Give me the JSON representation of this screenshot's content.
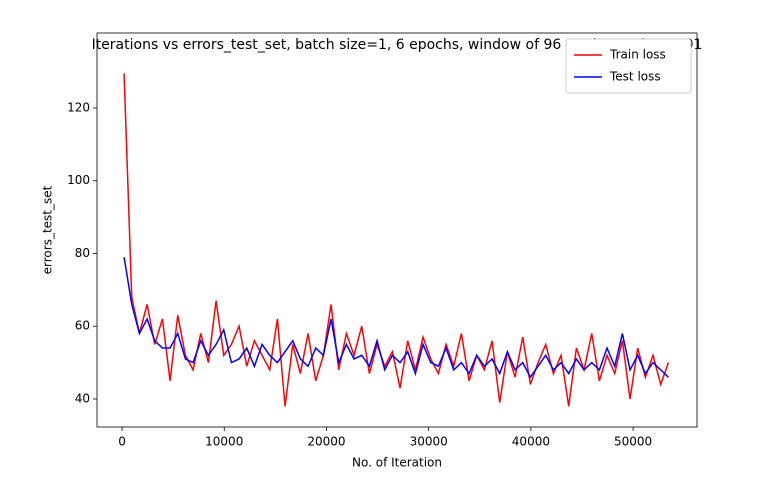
{
  "chart_data": {
    "type": "line",
    "title": "Iterations vs errors_test_set, batch size=1, 6 epochs, window of 96 1/4 hours, lr=0.001",
    "xlabel": "No. of Iteration",
    "ylabel": "errors_test_set",
    "x": [
      200,
      950,
      1700,
      2450,
      3200,
      3950,
      4700,
      5450,
      6200,
      6950,
      7700,
      8450,
      9200,
      9950,
      10700,
      11450,
      12200,
      12950,
      13700,
      14450,
      15200,
      15950,
      16700,
      17450,
      18200,
      18950,
      19700,
      20450,
      21200,
      21950,
      22700,
      23450,
      24200,
      24950,
      25700,
      26450,
      27200,
      27950,
      28700,
      29450,
      30200,
      30950,
      31700,
      32450,
      33200,
      33950,
      34700,
      35450,
      36200,
      36950,
      37700,
      38450,
      39200,
      39950,
      40700,
      41450,
      42200,
      42950,
      43700,
      44450,
      45200,
      45950,
      46700,
      47450,
      48200,
      48950,
      49700,
      50450,
      51200,
      51950,
      52700,
      53450
    ],
    "series": [
      {
        "name": "Train loss",
        "color": "#ff0000",
        "values": [
          129.5,
          68,
          58,
          66,
          55,
          62,
          45,
          63,
          52,
          48,
          58,
          50,
          67,
          52,
          55,
          60,
          49,
          56,
          52,
          48,
          62,
          38,
          55,
          47,
          58,
          45,
          52,
          66,
          48,
          58,
          52,
          60,
          47,
          55,
          49,
          53,
          43,
          56,
          48,
          57,
          51,
          47,
          55,
          49,
          58,
          45,
          52,
          48,
          56,
          39,
          53,
          46,
          57,
          44,
          50,
          55,
          47,
          52,
          38,
          54,
          48,
          58,
          45,
          52,
          47,
          56,
          40,
          54,
          46,
          52,
          44,
          50
        ]
      },
      {
        "name": "Test loss",
        "color": "#0000ff",
        "values": [
          79,
          66,
          58,
          62,
          56,
          54,
          54,
          58,
          51,
          50,
          56,
          52,
          55,
          59,
          50,
          51,
          54,
          49,
          55,
          52,
          50,
          53,
          56,
          51,
          49,
          54,
          52,
          62,
          50,
          55,
          51,
          52,
          49,
          56,
          48,
          52,
          50,
          53,
          47,
          55,
          50,
          49,
          54,
          48,
          50,
          47,
          52,
          49,
          51,
          47,
          53,
          48,
          50,
          46,
          49,
          52,
          48,
          50,
          47,
          51,
          48,
          50,
          48,
          54,
          49,
          58,
          48,
          52,
          47,
          50,
          48,
          46
        ]
      }
    ],
    "xlim": [
      -2450,
      56250
    ],
    "ylim": [
      32.3,
      140.6
    ],
    "xticks": [
      0,
      10000,
      20000,
      30000,
      40000,
      50000
    ],
    "yticks": [
      40,
      60,
      80,
      100,
      120
    ],
    "legend": "upper-right",
    "grid": false
  }
}
